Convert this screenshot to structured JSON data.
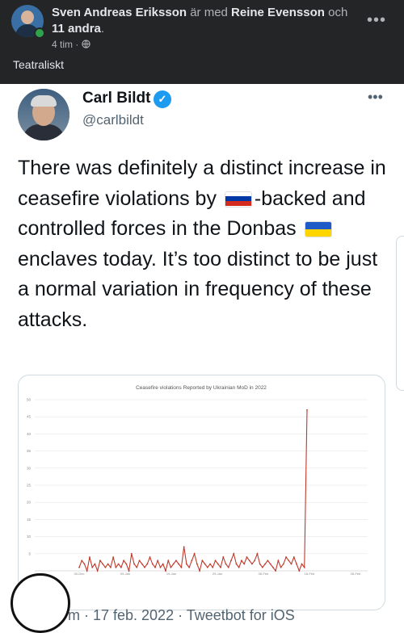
{
  "facebook": {
    "author": "Sven Andreas Eriksson",
    "with_text": "är med",
    "tagged": "Reine Evensson",
    "and_text": "och",
    "others": "11 andra",
    "period": ".",
    "time": "4 tim",
    "separator": "·",
    "caption": "Teatraliskt",
    "menu": "•••",
    "privacy_icon": "globe-icon"
  },
  "tweet": {
    "name": "Carl Bildt",
    "handle": "@carlbildt",
    "verified_icon": "✓",
    "menu": "•••",
    "text_1": "There was definitely a distinct increase in ceasefire violations by ",
    "text_2": "-backed and controlled forces in the Donbas ",
    "text_3": " enclaves today. It’s too distinct to be just a normal variation in frequency of these attacks.",
    "flag_ru": {
      "colors": [
        "#ffffff",
        "#0039a6",
        "#d52b1e"
      ]
    },
    "flag_ua": {
      "colors": [
        "#1e5bc6",
        "#ffd500"
      ]
    },
    "footer": "m · 17 feb. 2022 · Tweetbot for iOS"
  },
  "chart_data": {
    "type": "line",
    "title": "Ceasefire violations Reported by Ukrainian MoD in 2022",
    "xlabel": "",
    "ylabel": "",
    "ylim": [
      0,
      50
    ],
    "yticks": [
      5,
      10,
      15,
      20,
      25,
      30,
      35,
      40,
      45,
      50
    ],
    "x_tick_labels": [
      "30-Dec",
      "09-Jan",
      "19-Jan",
      "29-Jan",
      "08-Feb",
      "18-Feb",
      "28-Feb"
    ],
    "grid": true,
    "color": "#c0392b",
    "series": [
      {
        "values": [
          1,
          3,
          2,
          0,
          4,
          1,
          2,
          0,
          3,
          2,
          1,
          2,
          1,
          4,
          1,
          2,
          1,
          3,
          2,
          0,
          5,
          2,
          1,
          3,
          2,
          1,
          2,
          4,
          2,
          1,
          3,
          1,
          2,
          0,
          3,
          1,
          2,
          3,
          2,
          1,
          7,
          2,
          1,
          3,
          5,
          2,
          0,
          3,
          2,
          1,
          2,
          1,
          3,
          2,
          1,
          4,
          2,
          1,
          3,
          5,
          2,
          1,
          3,
          2,
          4,
          3,
          2,
          3,
          5,
          2,
          1,
          2,
          3,
          2,
          1,
          0,
          3,
          1,
          2,
          4,
          3,
          2,
          4,
          2,
          0,
          2,
          1,
          47
        ]
      }
    ]
  }
}
